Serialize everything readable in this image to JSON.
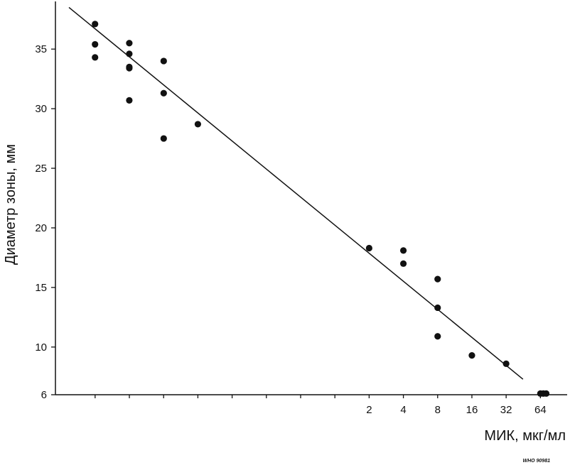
{
  "chart_data": {
    "type": "scatter",
    "xlabel": "МИК,  мкг/мл",
    "ylabel": "Диаметр зоны, мм",
    "x_scale": "log2",
    "x_ticks": [
      {
        "value": 0.0078125,
        "label": ""
      },
      {
        "value": 0.015625,
        "label": ""
      },
      {
        "value": 0.03125,
        "label": ""
      },
      {
        "value": 0.0625,
        "label": ""
      },
      {
        "value": 0.125,
        "label": ""
      },
      {
        "value": 0.25,
        "label": ""
      },
      {
        "value": 0.5,
        "label": ""
      },
      {
        "value": 1,
        "label": ""
      },
      {
        "value": 2,
        "label": "2"
      },
      {
        "value": 4,
        "label": "4"
      },
      {
        "value": 8,
        "label": "8"
      },
      {
        "value": 16,
        "label": "16"
      },
      {
        "value": 32,
        "label": "32"
      },
      {
        "value": 64,
        "label": "64"
      }
    ],
    "y_ticks": [
      {
        "value": 6,
        "label": "6"
      },
      {
        "value": 10,
        "label": "10"
      },
      {
        "value": 15,
        "label": "15"
      },
      {
        "value": 20,
        "label": "20"
      },
      {
        "value": 25,
        "label": "25"
      },
      {
        "value": 30,
        "label": "30"
      },
      {
        "value": 35,
        "label": "35"
      }
    ],
    "xlim": [
      0.0035,
      110
    ],
    "ylim": [
      6,
      39
    ],
    "points": [
      {
        "x": 0.0078,
        "y": 37.1
      },
      {
        "x": 0.0078,
        "y": 35.4
      },
      {
        "x": 0.0078,
        "y": 34.3
      },
      {
        "x": 0.0156,
        "y": 35.5
      },
      {
        "x": 0.0156,
        "y": 34.6
      },
      {
        "x": 0.0156,
        "y": 33.5
      },
      {
        "x": 0.0156,
        "y": 33.4
      },
      {
        "x": 0.0156,
        "y": 30.7
      },
      {
        "x": 0.0313,
        "y": 34.0
      },
      {
        "x": 0.0313,
        "y": 31.3
      },
      {
        "x": 0.0313,
        "y": 27.5
      },
      {
        "x": 0.0625,
        "y": 28.7
      },
      {
        "x": 2,
        "y": 18.3
      },
      {
        "x": 4,
        "y": 18.1
      },
      {
        "x": 4,
        "y": 17.0
      },
      {
        "x": 8,
        "y": 15.7
      },
      {
        "x": 8,
        "y": 13.3
      },
      {
        "x": 8,
        "y": 10.9
      },
      {
        "x": 16,
        "y": 9.3
      },
      {
        "x": 32,
        "y": 8.6
      },
      {
        "x": 64,
        "y": 6.1
      },
      {
        "x": 68,
        "y": 6.1
      },
      {
        "x": 72,
        "y": 6.1
      }
    ],
    "regression_line": {
      "x": [
        0.0046,
        45
      ],
      "y": [
        38.5,
        7.3
      ]
    },
    "grid": false,
    "legend": "none"
  },
  "credit": "WHO 90981"
}
